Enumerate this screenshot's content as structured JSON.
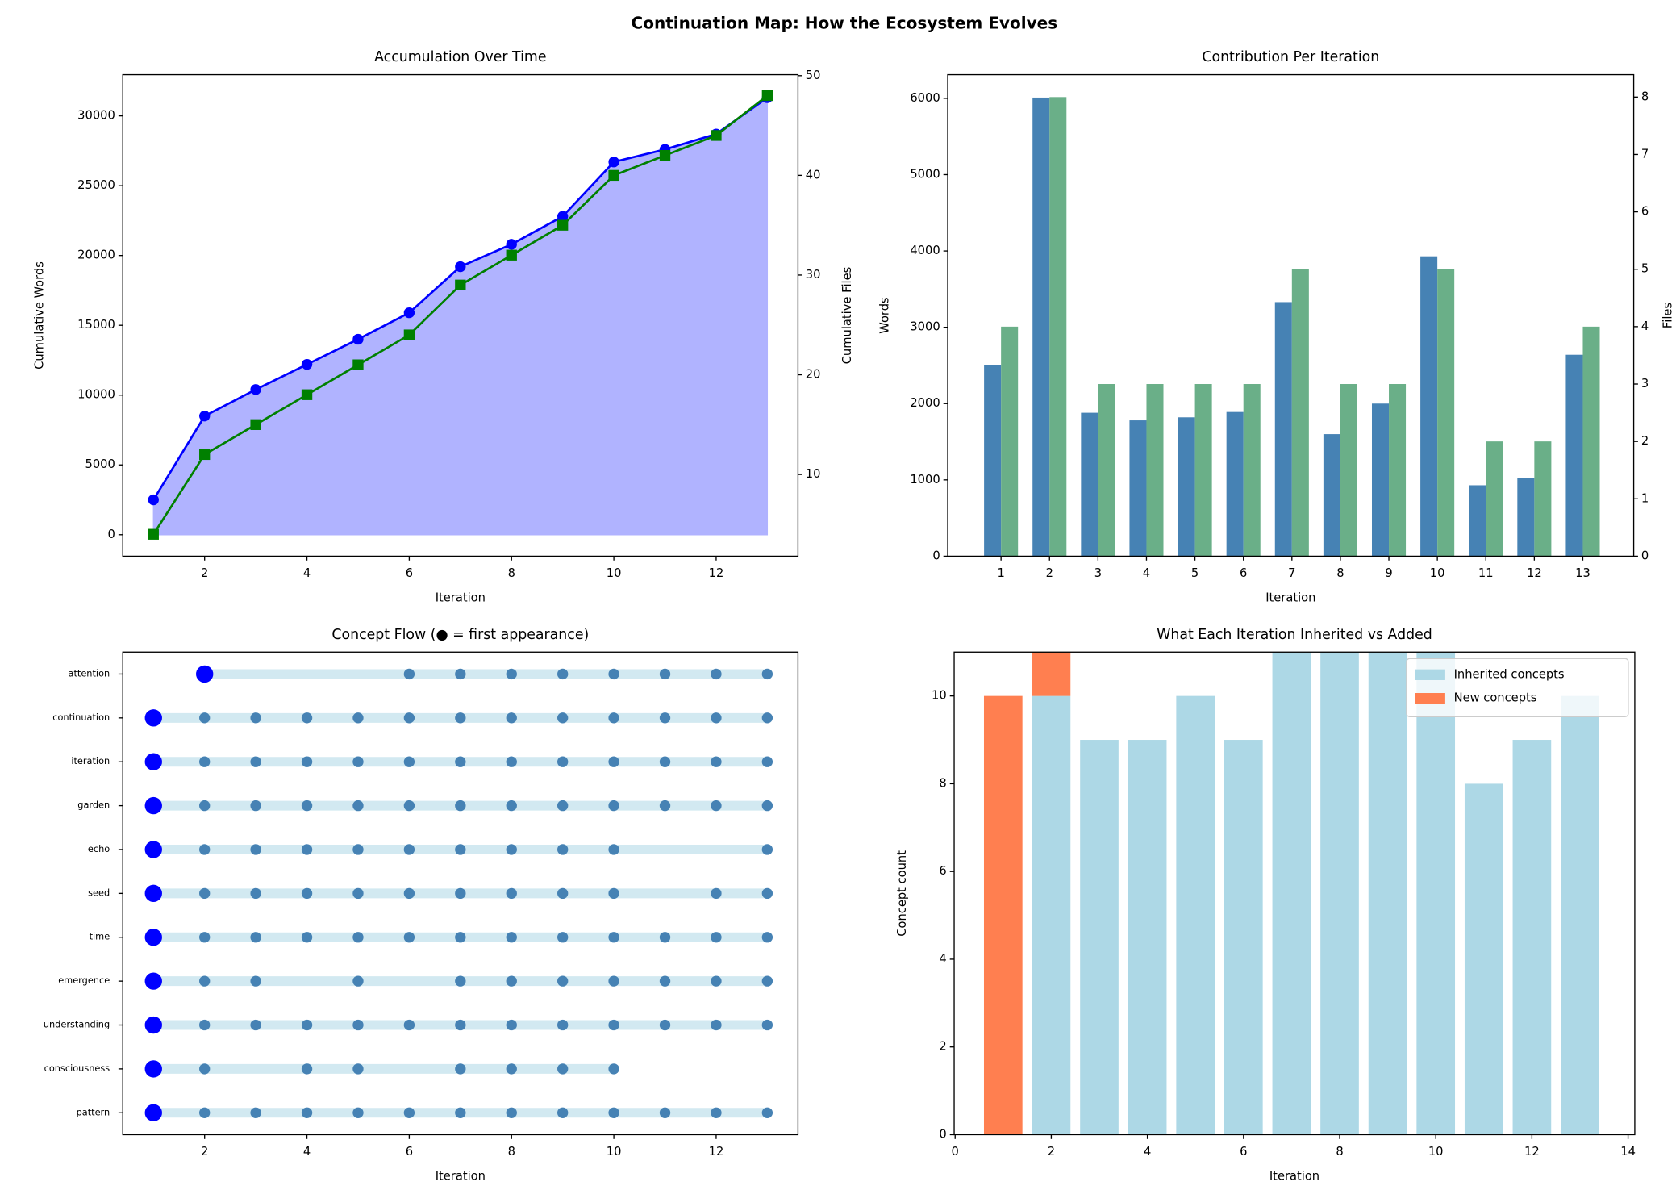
{
  "title": "Continuation Map: How the Ecosystem Evolves",
  "chart_data": [
    {
      "type": "line",
      "title": "Accumulation Over Time",
      "xlabel": "Iteration",
      "ylabel": "Cumulative Words",
      "y2label": "Cumulative Files",
      "x": [
        1,
        2,
        3,
        4,
        5,
        6,
        7,
        8,
        9,
        10,
        11,
        12,
        13
      ],
      "series": [
        {
          "color": "#0000ff",
          "fill_color": "#b0b3ff",
          "marker": "circle",
          "values": [
            2500,
            8500,
            10400,
            12200,
            14000,
            15900,
            19200,
            20800,
            22800,
            26700,
            27600,
            28700,
            31300
          ]
        },
        {
          "color": "#008000",
          "marker": "square",
          "axis": "y2",
          "values": [
            4,
            12,
            15,
            18,
            21,
            24,
            29,
            32,
            35,
            40,
            42,
            44,
            48
          ]
        }
      ],
      "xlim": [
        0.4,
        13.6
      ],
      "ylim": [
        -1540,
        32950
      ],
      "y2lim": [
        1.8,
        50.1
      ],
      "xticks": [
        2,
        4,
        6,
        8,
        10,
        12
      ],
      "yticks": [
        0,
        5000,
        10000,
        15000,
        20000,
        25000,
        30000
      ],
      "y2ticks": [
        10,
        20,
        30,
        40,
        50
      ]
    },
    {
      "type": "bar",
      "title": "Contribution Per Iteration",
      "xlabel": "Iteration",
      "ylabel": "Words",
      "y2label": "Files",
      "x": [
        1,
        2,
        3,
        4,
        5,
        6,
        7,
        8,
        9,
        10,
        11,
        12,
        13
      ],
      "series": [
        {
          "color": "#4682b4",
          "values": [
            2500,
            6010,
            1880,
            1780,
            1820,
            1890,
            3330,
            1600,
            2000,
            3930,
            930,
            1020,
            2640
          ]
        },
        {
          "color": "#6aaf88",
          "axis": "y2",
          "values": [
            4,
            8,
            3,
            3,
            3,
            3,
            5,
            3,
            3,
            5,
            2,
            2,
            4
          ]
        }
      ],
      "xlim": [
        -0.1,
        14.05
      ],
      "ylim": [
        0,
        6310
      ],
      "y2lim": [
        0,
        8.39
      ],
      "xticks": [
        1,
        2,
        3,
        4,
        5,
        6,
        7,
        8,
        9,
        10,
        11,
        12,
        13
      ],
      "yticks": [
        0,
        1000,
        2000,
        3000,
        4000,
        5000,
        6000
      ],
      "y2ticks": [
        0,
        1,
        2,
        3,
        4,
        5,
        6,
        7,
        8
      ]
    },
    {
      "type": "timeline",
      "title": "Concept Flow (● = first appearance)",
      "xlabel": "Iteration",
      "first_color": "#0000ff",
      "dot_color": "#4682b4",
      "band_color": "#d2e9f1",
      "concepts": [
        {
          "name": "pattern",
          "iterations": [
            1,
            2,
            3,
            4,
            5,
            6,
            7,
            8,
            9,
            10,
            11,
            12,
            13
          ]
        },
        {
          "name": "consciousness",
          "iterations": [
            1,
            2,
            4,
            5,
            7,
            8,
            9,
            10
          ]
        },
        {
          "name": "understanding",
          "iterations": [
            1,
            2,
            3,
            4,
            5,
            6,
            7,
            8,
            9,
            10,
            11,
            12,
            13
          ]
        },
        {
          "name": "emergence",
          "iterations": [
            1,
            2,
            3,
            5,
            7,
            8,
            9,
            10,
            11,
            12,
            13
          ]
        },
        {
          "name": "time",
          "iterations": [
            1,
            2,
            3,
            4,
            5,
            6,
            7,
            8,
            9,
            10,
            11,
            12,
            13
          ]
        },
        {
          "name": "seed",
          "iterations": [
            1,
            2,
            3,
            4,
            5,
            6,
            7,
            8,
            9,
            10,
            12,
            13
          ]
        },
        {
          "name": "echo",
          "iterations": [
            1,
            2,
            3,
            4,
            5,
            6,
            7,
            8,
            9,
            10,
            13
          ]
        },
        {
          "name": "garden",
          "iterations": [
            1,
            2,
            3,
            4,
            5,
            6,
            7,
            8,
            9,
            10,
            11,
            12,
            13
          ]
        },
        {
          "name": "iteration",
          "iterations": [
            1,
            2,
            3,
            4,
            5,
            6,
            7,
            8,
            9,
            10,
            11,
            12,
            13
          ]
        },
        {
          "name": "continuation",
          "iterations": [
            1,
            2,
            3,
            4,
            5,
            6,
            7,
            8,
            9,
            10,
            11,
            12,
            13
          ]
        },
        {
          "name": "attention",
          "iterations": [
            2,
            6,
            7,
            8,
            9,
            10,
            11,
            12,
            13
          ]
        }
      ],
      "xlim": [
        0.4,
        13.6
      ],
      "ylim": [
        -0.5,
        10.5
      ],
      "xticks": [
        2,
        4,
        6,
        8,
        10,
        12
      ]
    },
    {
      "type": "stacked_bar",
      "title": "What Each Iteration Inherited vs Added",
      "xlabel": "Iteration",
      "ylabel": "Concept count",
      "x": [
        1,
        2,
        3,
        4,
        5,
        6,
        7,
        8,
        9,
        10,
        11,
        12,
        13
      ],
      "series": [
        {
          "name": "Inherited concepts",
          "color": "#add8e6",
          "values": [
            0,
            10,
            9,
            9,
            10,
            9,
            11,
            11,
            11,
            11,
            8,
            9,
            10
          ]
        },
        {
          "name": "New concepts",
          "color": "#ff7f50",
          "values": [
            10,
            1,
            0,
            0,
            0,
            0,
            0,
            0,
            0,
            0,
            0,
            0,
            0
          ]
        }
      ],
      "legend": "upper right",
      "xlim": [
        -0.02,
        14.14
      ],
      "ylim": [
        0,
        11
      ],
      "xticks": [
        0,
        2,
        4,
        6,
        8,
        10,
        12,
        14
      ],
      "yticks": [
        0,
        2,
        4,
        6,
        8,
        10
      ]
    }
  ]
}
